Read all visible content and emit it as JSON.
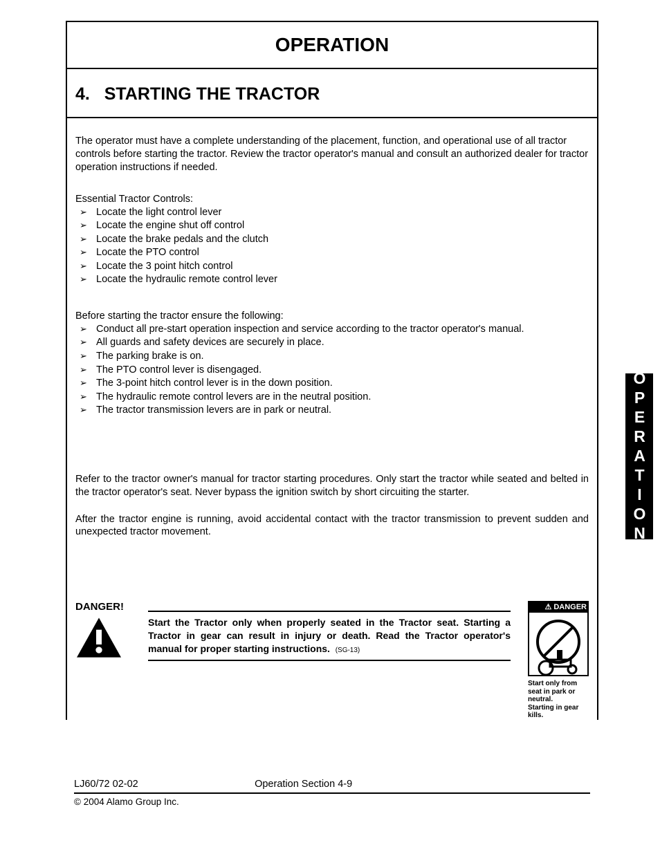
{
  "header": {
    "title": "OPERATION"
  },
  "section": {
    "number": "4.",
    "heading": "STARTING THE TRACTOR",
    "intro": "The operator must have a complete understanding of the placement, function, and operational use of all tractor controls before starting the tractor.  Review the tractor operator's manual and consult an authorized dealer for tractor operation instructions if needed.",
    "list1_intro": "Essential Tractor Controls:",
    "list1": [
      "Locate the light control lever",
      "Locate the engine shut off control",
      "Locate the brake pedals and the clutch",
      "Locate the PTO control",
      "Locate the 3 point hitch control",
      "Locate the hydraulic remote control lever"
    ],
    "list2_intro": "Before starting the tractor ensure the following:",
    "list2": [
      "Conduct all pre-start operation inspection and service according to the tractor operator's manual.",
      "All guards and safety devices are securely in place.",
      "The parking brake is on.",
      "The PTO control lever is disengaged.",
      "The 3-point hitch control lever is in the down position.",
      "The hydraulic remote control levers are in the neutral position.",
      "The tractor transmission levers are in park or neutral."
    ],
    "para3": "Refer to the tractor owner's manual for tractor starting procedures.  Only start the tractor while seated and belted in the tractor operator's seat.  Never bypass the ignition switch by short circuiting the starter.",
    "para4": "After the tractor engine is running, avoid accidental contact with the tractor transmission to prevent sudden and unexpected tractor movement."
  },
  "danger": {
    "label": "DANGER!",
    "text": "Start the Tractor only when properly seated in the Tractor seat.  Starting a Tractor in gear can result in injury or death.  Read the Tractor operator's manual for proper starting instructions.",
    "ref": "(SG-13)",
    "pict_header": "DANGER",
    "pict_caption": "Start only from seat in park or neutral.\nStarting in gear kills."
  },
  "sidetab": {
    "label": "OPERATION"
  },
  "footer": {
    "left": "LJ60/72 02-02",
    "center": "Operation Section 4-9",
    "copyright": "© 2004 Alamo Group Inc."
  },
  "colors": {
    "text": "#000000",
    "bg": "#ffffff",
    "tab_bg": "#000000",
    "tab_fg": "#ffffff"
  },
  "fonts": {
    "body_size_pt": 11,
    "heading_size_pt": 19,
    "header_size_pt": 21
  }
}
